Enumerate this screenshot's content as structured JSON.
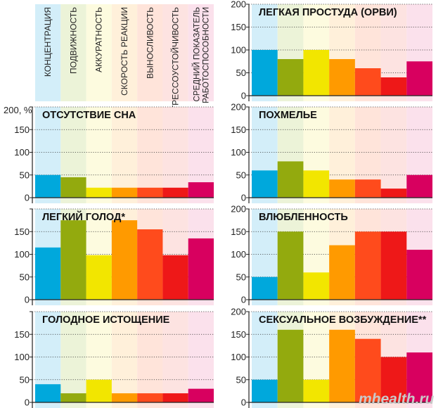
{
  "unit_label": "200, %",
  "watermark": "mhealth.ru",
  "metrics": [
    {
      "lines": [
        "КОНЦЕНТРАЦИЯ"
      ],
      "color": "#00a8dc",
      "tint": "#d3eef9"
    },
    {
      "lines": [
        "ПОДВИЖНОСТЬ"
      ],
      "color": "#93aa0e",
      "tint": "#ecf3d8"
    },
    {
      "lines": [
        "АККУРАТНОСТЬ"
      ],
      "color": "#f2e600",
      "tint": "#fdfbdf"
    },
    {
      "lines": [
        "СКОРОСТЬ РЕАКЦИИ"
      ],
      "color": "#ff9a00",
      "tint": "#fff0da"
    },
    {
      "lines": [
        "ВЫНОСЛИВОСТЬ"
      ],
      "color": "#ff4b1c",
      "tint": "#ffe4da"
    },
    {
      "lines": [
        "СТРЕССОУСТОЙЧИВОСТЬ"
      ],
      "color": "#ee1818",
      "tint": "#fde3e1"
    },
    {
      "lines": [
        "СРЕДНИЙ ПОКАЗАТЕЛЬ",
        "РАБОТОСПОСОБНОСТИ"
      ],
      "color": "#d8005f",
      "tint": "#fbe1ec"
    }
  ],
  "chart_data": [
    {
      "type": "bar",
      "title": "ОТСУТСТВИЕ СНА",
      "ylim": [
        0,
        200
      ],
      "yticks": [
        0,
        50,
        100,
        150,
        200
      ],
      "categories": [
        "КОНЦЕНТРАЦИЯ",
        "ПОДВИЖНОСТЬ",
        "АККУРАТНОСТЬ",
        "СКОРОСТЬ РЕАКЦИИ",
        "ВЫНОСЛИВОСТЬ",
        "СТРЕССОУСТОЙЧИВОСТЬ",
        "СРЕДНИЙ ПОКАЗАТЕЛЬ РАБОТОСПОСОБНОСТИ"
      ],
      "values": [
        50,
        45,
        22,
        22,
        22,
        22,
        34
      ]
    },
    {
      "type": "bar",
      "title": "ЛЕГКИЙ ГОЛОД*",
      "ylim": [
        0,
        200
      ],
      "yticks": [
        0,
        50,
        100,
        150,
        200
      ],
      "categories": [
        "КОНЦЕНТРАЦИЯ",
        "ПОДВИЖНОСТЬ",
        "АККУРАТНОСТЬ",
        "СКОРОСТЬ РЕАКЦИИ",
        "ВЫНОСЛИВОСТЬ",
        "СТРЕССОУСТОЙЧИВОСТЬ",
        "СРЕДНИЙ ПОКАЗАТЕЛЬ РАБОТОСПОСОБНОСТИ"
      ],
      "values": [
        115,
        175,
        98,
        175,
        155,
        98,
        135
      ]
    },
    {
      "type": "bar",
      "title": "ГОЛОДНОЕ ИСТОЩЕНИЕ",
      "ylim": [
        0,
        200
      ],
      "yticks": [
        0,
        50,
        100,
        150,
        200
      ],
      "categories": [
        "КОНЦЕНТРАЦИЯ",
        "ПОДВИЖНОСТЬ",
        "АККУРАТНОСТЬ",
        "СКОРОСТЬ РЕАКЦИИ",
        "ВЫНОСЛИВОСТЬ",
        "СТРЕССОУСТОЙЧИВОСТЬ",
        "СРЕДНИЙ ПОКАЗАТЕЛЬ РАБОТОСПОСОБНОСТИ"
      ],
      "values": [
        40,
        20,
        50,
        20,
        20,
        20,
        30
      ]
    },
    {
      "type": "bar",
      "title": "ЛЕГКАЯ ПРОСТУДА (ОРВИ)",
      "ylim": [
        0,
        200
      ],
      "yticks": [
        0,
        50,
        100,
        150,
        200
      ],
      "categories": [
        "КОНЦЕНТРАЦИЯ",
        "ПОДВИЖНОСТЬ",
        "АККУРАТНОСТЬ",
        "СКОРОСТЬ РЕАКЦИИ",
        "ВЫНОСЛИВОСТЬ",
        "СТРЕССОУСТОЙЧИВОСТЬ",
        "СРЕДНИЙ ПОКАЗАТЕЛЬ РАБОТОСПОСОБНОСТИ"
      ],
      "values": [
        100,
        80,
        100,
        80,
        60,
        40,
        75
      ]
    },
    {
      "type": "bar",
      "title": "ПОХМЕЛЬЕ",
      "ylim": [
        0,
        200
      ],
      "yticks": [
        0,
        50,
        100,
        150,
        200
      ],
      "categories": [
        "КОНЦЕНТРАЦИЯ",
        "ПОДВИЖНОСТЬ",
        "АККУРАТНОСТЬ",
        "СКОРОСТЬ РЕАКЦИИ",
        "ВЫНОСЛИВОСТЬ",
        "СТРЕССОУСТОЙЧИВОСТЬ",
        "СРЕДНИЙ ПОКАЗАТЕЛЬ РАБОТОСПОСОБНОСТИ"
      ],
      "values": [
        60,
        80,
        60,
        40,
        40,
        20,
        50
      ]
    },
    {
      "type": "bar",
      "title": "ВЛЮБЛЕННОСТЬ",
      "ylim": [
        0,
        200
      ],
      "yticks": [
        0,
        50,
        100,
        150,
        200
      ],
      "categories": [
        "КОНЦЕНТРАЦИЯ",
        "ПОДВИЖНОСТЬ",
        "АККУРАТНОСТЬ",
        "СКОРОСТЬ РЕАКЦИИ",
        "ВЫНОСЛИВОСТЬ",
        "СТРЕССОУСТОЙЧИВОСТЬ",
        "СРЕДНИЙ ПОКАЗАТЕЛЬ РАБОТОСПОСОБНОСТИ"
      ],
      "values": [
        50,
        150,
        60,
        120,
        150,
        150,
        110
      ]
    },
    {
      "type": "bar",
      "title": "СЕКСУАЛЬНОЕ ВОЗБУЖДЕНИЕ**",
      "ylim": [
        0,
        200
      ],
      "yticks": [
        0,
        50,
        100,
        150,
        200
      ],
      "categories": [
        "КОНЦЕНТРАЦИЯ",
        "ПОДВИЖНОСТЬ",
        "АККУРАТНОСТЬ",
        "СКОРОСТЬ РЕАКЦИИ",
        "ВЫНОСЛИВОСТЬ",
        "СТРЕССОУСТОЙЧИВОСТЬ",
        "СРЕДНИЙ ПОКАЗАТЕЛЬ РАБОТОСПОСОБНОСТИ"
      ],
      "values": [
        50,
        160,
        50,
        160,
        140,
        100,
        110
      ]
    }
  ]
}
